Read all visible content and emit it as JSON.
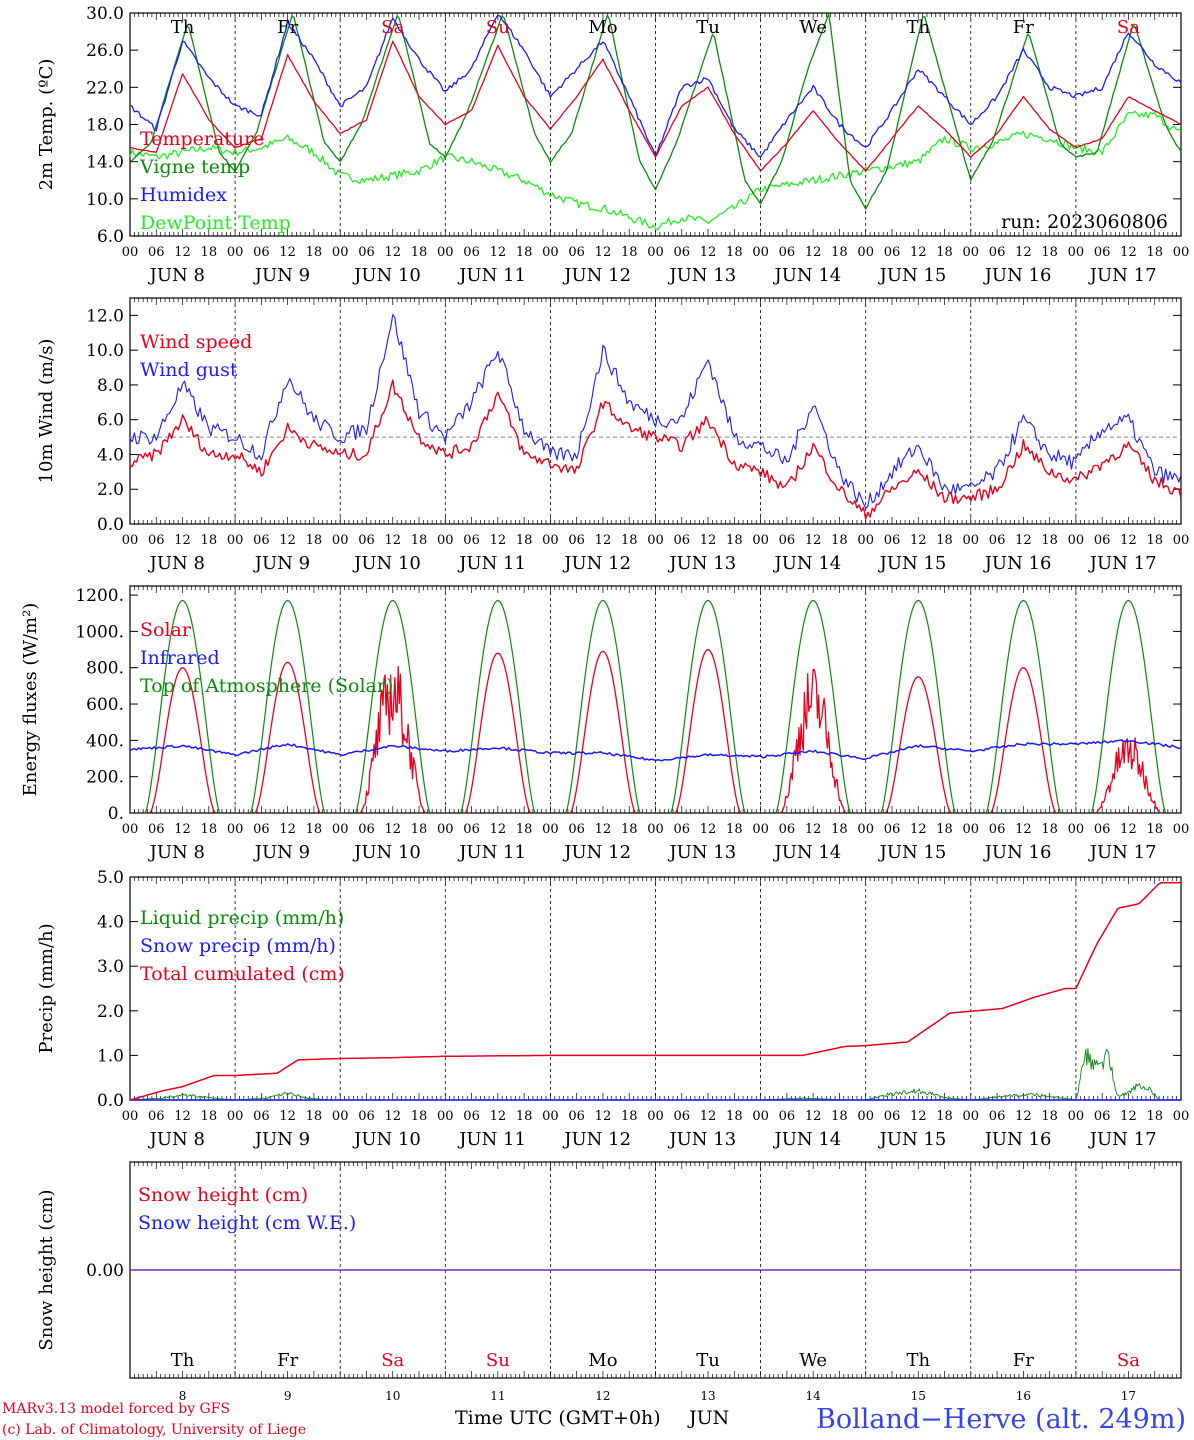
{
  "run_label": "run: 2023060806",
  "location": "Bolland−Herve (alt. 249m)",
  "credit_lines": [
    "MARv3.13 model forced by GFS",
    "(c) Lab. of Climatology, University of Liege"
  ],
  "time_axis_label": "Time UTC (GMT+0h)",
  "month_label": "JUN",
  "hour_ticks": [
    "00",
    "06",
    "12",
    "18"
  ],
  "days": [
    {
      "abbr": "Th",
      "date": "8",
      "weekend": false
    },
    {
      "abbr": "Fr",
      "date": "9",
      "weekend": false
    },
    {
      "abbr": "Sa",
      "date": "10",
      "weekend": true
    },
    {
      "abbr": "Su",
      "date": "11",
      "weekend": true
    },
    {
      "abbr": "Mo",
      "date": "12",
      "weekend": false
    },
    {
      "abbr": "Tu",
      "date": "13",
      "weekend": false
    },
    {
      "abbr": "We",
      "date": "14",
      "weekend": false
    },
    {
      "abbr": "Th",
      "date": "15",
      "weekend": false
    },
    {
      "abbr": "Fr",
      "date": "16",
      "weekend": false
    },
    {
      "abbr": "Sa",
      "date": "17",
      "weekend": true
    }
  ],
  "colors": {
    "red": "#e8001b",
    "blue": "#1a1aff",
    "dark_green": "#0a8a0a",
    "light_green": "#22ee22",
    "purple": "#7a2aaa",
    "grey": "#888888"
  },
  "chart_data": [
    {
      "type": "line",
      "ylabel": "2m Temp. (ºC)",
      "ylim": [
        6,
        30
      ],
      "ytick_labels": [
        "6.0",
        "10.0",
        "14.0",
        "18.0",
        "22.0",
        "26.0",
        "30.0"
      ],
      "x_unit": "day of June (UTC), 8.0 = Jun 8 00h",
      "series": [
        {
          "name": "Temperature",
          "color": "red",
          "x": [
            8.0,
            8.25,
            8.5,
            8.75,
            9.0,
            9.25,
            9.5,
            9.75,
            10.0,
            10.25,
            10.5,
            10.75,
            11.0,
            11.25,
            11.5,
            11.75,
            12.0,
            12.25,
            12.5,
            12.75,
            13.0,
            13.25,
            13.5,
            13.75,
            14.0,
            14.25,
            14.5,
            14.75,
            15.0,
            15.25,
            15.5,
            15.75,
            16.0,
            16.25,
            16.5,
            16.75,
            17.0,
            17.25,
            17.5,
            17.75,
            18.0
          ],
          "values": [
            15.5,
            15,
            23.5,
            18.5,
            15.5,
            16.5,
            25.5,
            20.5,
            17,
            18.5,
            27,
            21,
            18,
            19.5,
            26.5,
            21,
            17.5,
            21,
            25,
            19.5,
            14.5,
            20,
            22,
            17,
            13,
            16,
            19.5,
            16,
            13,
            16.5,
            20,
            17.5,
            14.5,
            17,
            21,
            17.5,
            15.5,
            16.5,
            21,
            19.5,
            18
          ]
        },
        {
          "name": "Vigne temp",
          "color": "dark_green",
          "x": [
            8.0,
            8.2,
            8.55,
            8.85,
            9.0,
            9.2,
            9.55,
            9.85,
            10.0,
            10.2,
            10.55,
            10.85,
            11.0,
            11.2,
            11.55,
            11.85,
            12.0,
            12.2,
            12.55,
            12.85,
            13.0,
            13.2,
            13.55,
            13.85,
            14.0,
            14.2,
            14.45,
            14.65,
            14.85,
            15.0,
            15.2,
            15.55,
            15.85,
            16.0,
            16.2,
            16.55,
            16.85,
            17.0,
            17.2,
            17.55,
            17.85,
            18.0
          ],
          "values": [
            14,
            16,
            29,
            15,
            13,
            17,
            30,
            16,
            14,
            18,
            30,
            16,
            14.5,
            19,
            30,
            17,
            14,
            17,
            30,
            14,
            11,
            16,
            28,
            12,
            9.5,
            14,
            24,
            30,
            12,
            9,
            13,
            30,
            18,
            12,
            16,
            28,
            16,
            14.5,
            15,
            29,
            18,
            15
          ]
        },
        {
          "name": "Humidex",
          "color": "blue",
          "x": [
            8.0,
            8.25,
            8.5,
            8.75,
            9.0,
            9.25,
            9.5,
            9.75,
            10.0,
            10.25,
            10.5,
            10.75,
            11.0,
            11.25,
            11.5,
            11.75,
            12.0,
            12.25,
            12.5,
            12.75,
            13.0,
            13.25,
            13.5,
            13.75,
            14.0,
            14.25,
            14.5,
            14.75,
            15.0,
            15.25,
            15.5,
            15.75,
            16.0,
            16.25,
            16.5,
            16.75,
            17.0,
            17.25,
            17.5,
            17.75,
            18.0
          ],
          "values": [
            20,
            17.5,
            27,
            23,
            20,
            19,
            29,
            25,
            20,
            22,
            29.5,
            25,
            21.5,
            24,
            30,
            26,
            21,
            24,
            27,
            21,
            14.5,
            22,
            23,
            17.5,
            14.5,
            18.5,
            22,
            18,
            15.5,
            19.5,
            24,
            21,
            18,
            21,
            26,
            22,
            21,
            22,
            28,
            24.5,
            22.5
          ]
        },
        {
          "name": "DewPoint Temp",
          "color": "light_green",
          "x": [
            8.0,
            8.25,
            8.5,
            8.75,
            9.0,
            9.25,
            9.5,
            9.75,
            10.0,
            10.25,
            10.5,
            10.75,
            11.0,
            11.25,
            11.5,
            11.75,
            12.0,
            12.25,
            12.5,
            12.75,
            13.0,
            13.25,
            13.5,
            13.75,
            14.0,
            14.25,
            14.5,
            14.75,
            15.0,
            15.25,
            15.5,
            15.75,
            16.0,
            16.25,
            16.5,
            16.75,
            17.0,
            17.25,
            17.5,
            17.75,
            18.0
          ],
          "values": [
            15,
            14.5,
            15,
            15.5,
            15,
            15.5,
            16.5,
            15,
            12.5,
            12,
            12.5,
            13,
            14.5,
            14,
            13,
            12,
            10.5,
            9.5,
            9,
            8,
            7,
            8,
            7.5,
            9,
            11,
            11.5,
            12,
            12.5,
            13,
            13.5,
            14,
            16.5,
            15.5,
            16,
            17,
            16.5,
            15.5,
            15,
            19,
            19,
            17
          ]
        }
      ]
    },
    {
      "type": "line",
      "ylabel": "10m Wind (m/s)",
      "ylim": [
        0,
        13
      ],
      "ytick_labels": [
        "0.0",
        "2.0",
        "4.0",
        "6.0",
        "8.0",
        "10.0",
        "12.0"
      ],
      "reference_line": 5,
      "series": [
        {
          "name": "Wind speed",
          "color": "red",
          "x": [
            8.0,
            8.25,
            8.5,
            8.75,
            9.0,
            9.25,
            9.5,
            9.75,
            10.0,
            10.25,
            10.5,
            10.75,
            11.0,
            11.25,
            11.5,
            11.75,
            12.0,
            12.25,
            12.5,
            12.75,
            13.0,
            13.25,
            13.5,
            13.75,
            14.0,
            14.25,
            14.5,
            14.75,
            15.0,
            15.25,
            15.5,
            15.75,
            16.0,
            16.25,
            16.5,
            16.75,
            17.0,
            17.25,
            17.5,
            17.75,
            18.0
          ],
          "values": [
            3.5,
            4,
            6,
            4,
            4,
            3,
            5.5,
            4.5,
            4,
            4,
            8,
            5,
            4,
            4.5,
            7.5,
            4,
            3.5,
            3,
            7,
            5.5,
            5,
            4.5,
            6,
            3.5,
            3,
            2,
            4.5,
            2,
            0.5,
            2,
            3,
            1.5,
            1.5,
            2,
            4.5,
            3,
            2.5,
            3.5,
            4.5,
            2.5,
            1.8
          ]
        },
        {
          "name": "Wind gust",
          "color": "blue",
          "x": [
            8.0,
            8.25,
            8.5,
            8.75,
            9.0,
            9.25,
            9.5,
            9.75,
            10.0,
            10.25,
            10.5,
            10.75,
            11.0,
            11.25,
            11.5,
            11.75,
            12.0,
            12.25,
            12.5,
            12.75,
            13.0,
            13.25,
            13.5,
            13.75,
            14.0,
            14.25,
            14.5,
            14.75,
            15.0,
            15.25,
            15.5,
            15.75,
            16.0,
            16.25,
            16.5,
            16.75,
            17.0,
            17.25,
            17.5,
            17.75,
            18.0
          ],
          "values": [
            5,
            5,
            8,
            5.5,
            5,
            4,
            8.5,
            6,
            5,
            5.5,
            12,
            6.5,
            5,
            7,
            10,
            5.5,
            4,
            4,
            10,
            7,
            6,
            6,
            9.5,
            5,
            4.5,
            3.5,
            7,
            3,
            1,
            3,
            4.5,
            2,
            2,
            3,
            6,
            4,
            3.5,
            5.5,
            6,
            3,
            2.5
          ]
        }
      ]
    },
    {
      "type": "line",
      "ylabel": "Energy fluxes (W/m²)",
      "ylim": [
        0,
        1250
      ],
      "ytick_labels": [
        "0.",
        "200.",
        "400.",
        "600.",
        "800.",
        "1000.",
        "1200."
      ],
      "series": [
        {
          "name": "Solar",
          "color": "red",
          "peaks": [
            800,
            830,
            870,
            880,
            890,
            900,
            830,
            750,
            800,
            450
          ]
        },
        {
          "name": "Infrared",
          "color": "blue",
          "x": [
            8.0,
            8.5,
            9.0,
            9.5,
            10.0,
            10.5,
            11.0,
            11.5,
            12.0,
            12.5,
            13.0,
            13.5,
            14.0,
            14.5,
            15.0,
            15.5,
            16.0,
            16.5,
            17.0,
            17.5,
            18.0
          ],
          "values": [
            350,
            370,
            320,
            380,
            320,
            370,
            340,
            360,
            330,
            330,
            290,
            320,
            310,
            340,
            300,
            370,
            340,
            380,
            380,
            400,
            360
          ]
        },
        {
          "name": "Top of Atmosphere (Solar)",
          "color": "dark_green",
          "peak": 1170
        }
      ]
    },
    {
      "type": "line",
      "ylabel": "Precip (mm/h)",
      "ylim": [
        0,
        5
      ],
      "ytick_labels": [
        "0.0",
        "1.0",
        "2.0",
        "3.0",
        "4.0",
        "5.0"
      ],
      "series": [
        {
          "name": "Liquid precip (mm/h)",
          "color": "dark_green",
          "x": [
            8.0,
            8.3,
            8.5,
            8.8,
            9.0,
            9.3,
            9.5,
            9.7,
            9.9,
            10.0,
            12.0,
            14.0,
            14.4,
            14.8,
            15.0,
            15.2,
            15.5,
            15.8,
            16.0,
            16.3,
            16.6,
            16.9,
            17.0,
            17.1,
            17.15,
            17.3,
            17.4,
            17.5,
            17.6,
            17.7,
            17.8,
            18.0
          ],
          "values": [
            0,
            0.05,
            0.15,
            0.05,
            0,
            0.05,
            0.2,
            0.05,
            0,
            0,
            0,
            0,
            0.05,
            0,
            0,
            0.15,
            0.25,
            0.05,
            0,
            0.1,
            0.15,
            0.05,
            0,
            1.3,
            0.9,
            1.2,
            0.1,
            0.2,
            0.4,
            0.3,
            0,
            0
          ]
        },
        {
          "name": "Snow precip (mm/h)",
          "color": "blue",
          "x": [
            8.0,
            18.0
          ],
          "values": [
            0,
            0
          ]
        },
        {
          "name": "Total cumulated (cm)",
          "color": "red",
          "x": [
            8.0,
            8.3,
            8.5,
            8.8,
            9.0,
            9.4,
            9.6,
            10.0,
            10.5,
            11.0,
            12.0,
            13.0,
            14.4,
            14.8,
            15.0,
            15.4,
            15.8,
            16.0,
            16.3,
            16.6,
            16.9,
            17.0,
            17.2,
            17.4,
            17.6,
            17.8,
            18.0
          ],
          "values": [
            0,
            0.2,
            0.3,
            0.55,
            0.55,
            0.6,
            0.9,
            0.93,
            0.95,
            0.98,
            1,
            1,
            1,
            1.2,
            1.22,
            1.3,
            1.95,
            1.99,
            2.05,
            2.3,
            2.5,
            2.5,
            3.5,
            4.3,
            4.4,
            4.87,
            4.87
          ]
        }
      ]
    },
    {
      "type": "line",
      "ylabel": "Snow height (cm)",
      "ytick_labels": [
        "0.00"
      ],
      "series": [
        {
          "name": "Snow height (cm)",
          "color": "red",
          "x": [
            8.0,
            18.0
          ],
          "values": [
            0,
            0
          ]
        },
        {
          "name": "Snow height (cm W.E.)",
          "color": "blue",
          "x": [
            8.0,
            18.0
          ],
          "values": [
            0,
            0
          ]
        }
      ]
    }
  ]
}
